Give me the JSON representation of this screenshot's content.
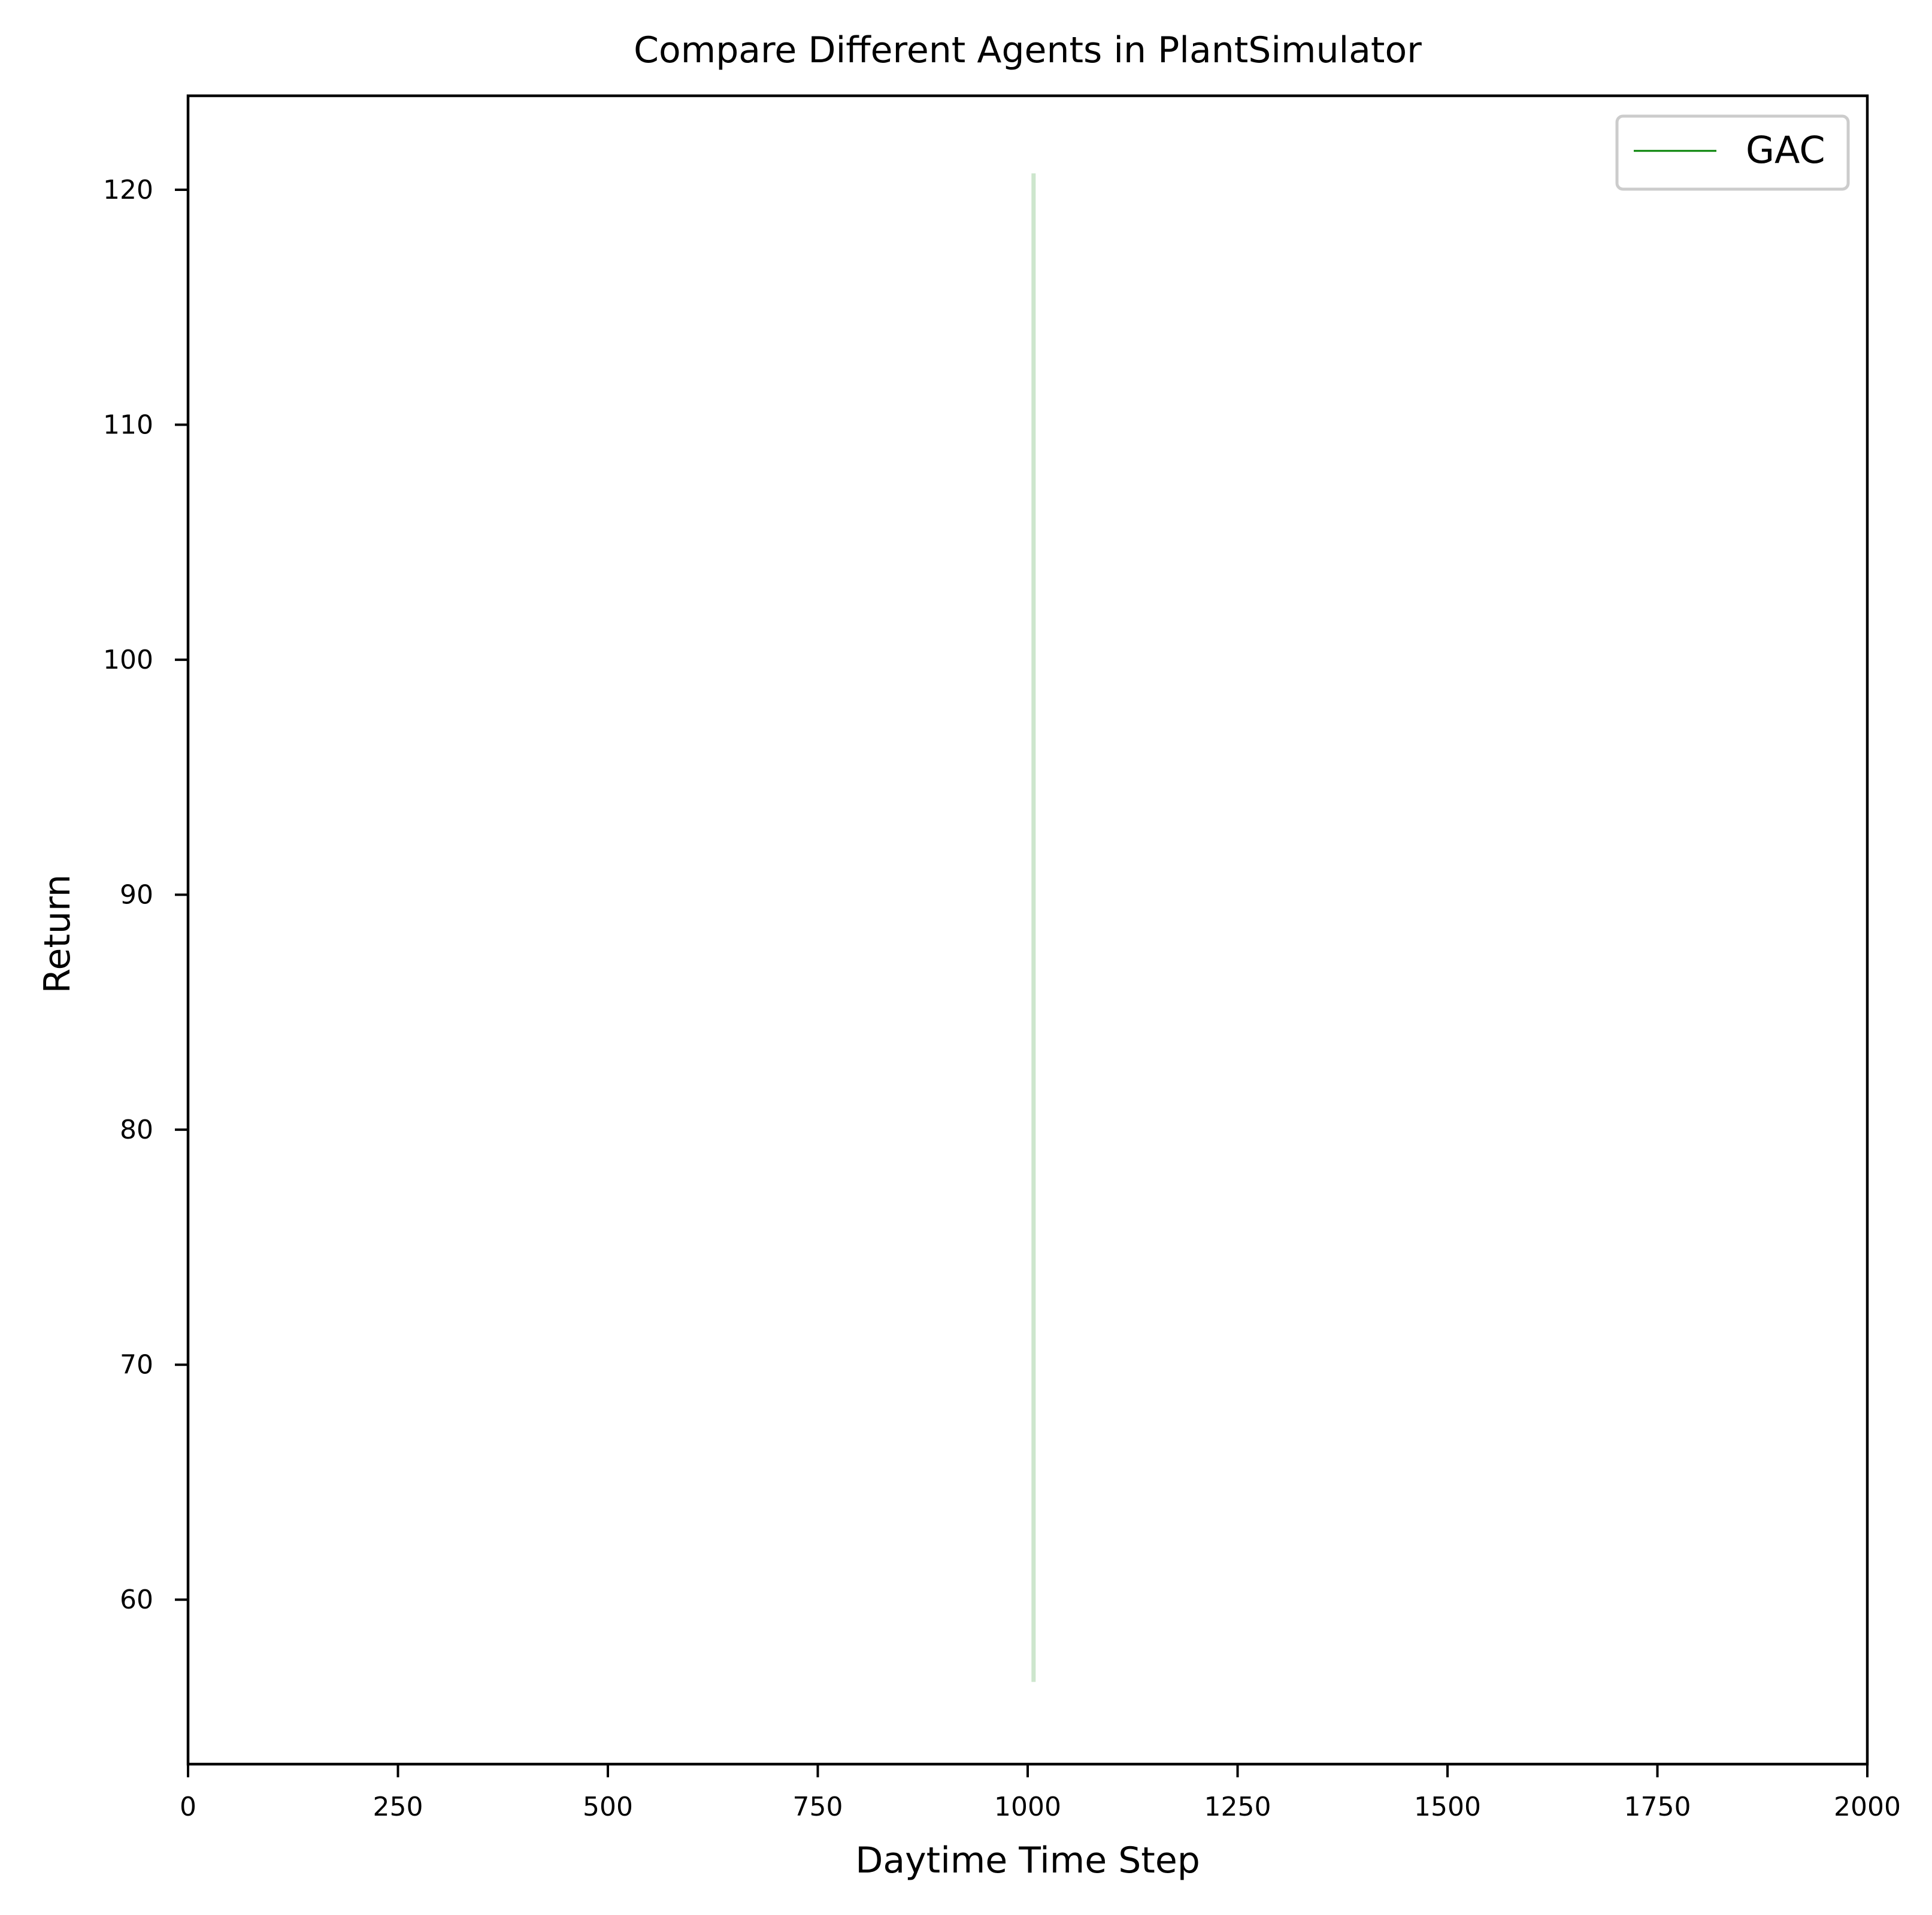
{
  "chart_data": {
    "type": "line",
    "title": "Compare Different Agents in PlantSimulator",
    "xlabel": "Daytime Time Step",
    "ylabel": "Return",
    "xlim": [
      0,
      2000
    ],
    "ylim": [
      53,
      124
    ],
    "xticks": [
      0,
      250,
      500,
      750,
      1000,
      1250,
      1500,
      1750,
      2000
    ],
    "yticks": [
      60,
      70,
      80,
      90,
      100,
      110,
      120
    ],
    "grid": false,
    "legend_position": "top-right",
    "series": [
      {
        "name": "GAC",
        "color": "#008000",
        "x": [],
        "y": [],
        "band": {
          "x": [
            1007,
            1007
          ],
          "low": 56.5,
          "high": 120.7,
          "color": "#cde6cd"
        }
      }
    ]
  }
}
